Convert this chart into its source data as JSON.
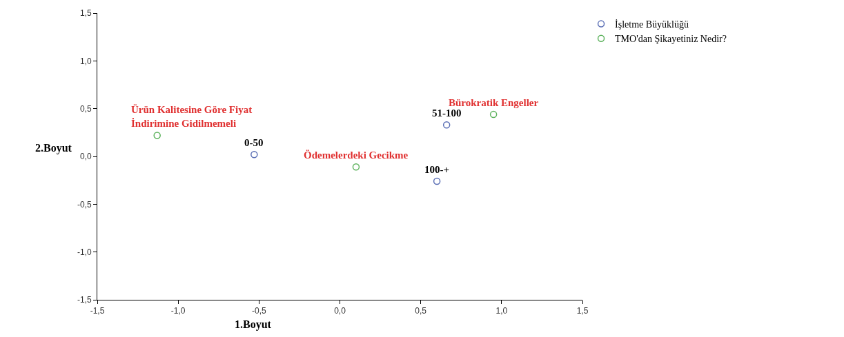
{
  "chart_data": {
    "type": "scatter",
    "xlabel": "1.Boyut",
    "ylabel": "2.Boyut",
    "xlim": [
      -1.5,
      1.5
    ],
    "ylim": [
      -1.5,
      1.5
    ],
    "xticks": [
      {
        "value": -1.5,
        "label": "-1,5"
      },
      {
        "value": -1.0,
        "label": "-1,0"
      },
      {
        "value": -0.5,
        "label": "-0,5"
      },
      {
        "value": 0.0,
        "label": "0,0"
      },
      {
        "value": 0.5,
        "label": "0,5"
      },
      {
        "value": 1.0,
        "label": "1,0"
      },
      {
        "value": 1.5,
        "label": "1,5"
      }
    ],
    "yticks": [
      {
        "value": -1.5,
        "label": "-1,5"
      },
      {
        "value": -1.0,
        "label": "-1,0"
      },
      {
        "value": -0.5,
        "label": "-0,5"
      },
      {
        "value": 0.0,
        "label": "0,0"
      },
      {
        "value": 0.5,
        "label": "0,5"
      },
      {
        "value": 1.0,
        "label": "1,0"
      },
      {
        "value": 1.5,
        "label": "1,5"
      }
    ],
    "legend": "top right",
    "marker": "circle",
    "series": [
      {
        "name": "İşletme Büyüklüğü",
        "color": "#5b6fb5",
        "x": [
          -0.53,
          0.66,
          0.6
        ],
        "values": [
          0.02,
          0.33,
          -0.26
        ]
      },
      {
        "name": "TMO'dan Şikayetiniz Nedir?",
        "color": "#5fb35f",
        "x": [
          -1.13,
          0.95,
          0.1
        ],
        "values": [
          0.22,
          0.44,
          -0.11
        ]
      }
    ],
    "annotations": [
      {
        "text": "0-50",
        "x": -0.53,
        "y": 0.02
      },
      {
        "text": "51-100",
        "x": 0.66,
        "y": 0.33
      },
      {
        "text": "100-+",
        "x": 0.6,
        "y": -0.26
      },
      {
        "text": "Ürün Kalitesine Göre Fiyat\nİndirimine Gidilmemeli",
        "x": -1.13,
        "y": 0.22
      },
      {
        "text": "Bürokratik Engeller",
        "x": 0.95,
        "y": 0.44
      },
      {
        "text": "Ödemelerdeki Gecikme",
        "x": 0.1,
        "y": -0.11
      }
    ]
  }
}
